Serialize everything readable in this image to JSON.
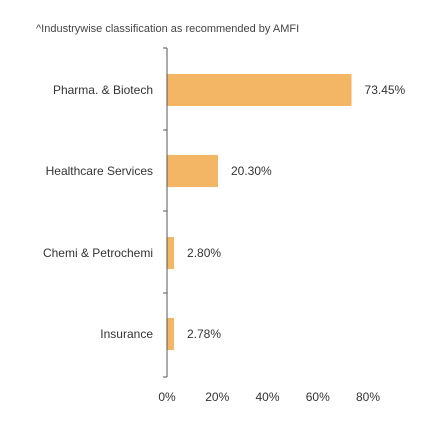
{
  "footnote": "^Industrywise classification as recommended by AMFI",
  "chart_data": {
    "type": "bar",
    "orientation": "horizontal",
    "categories": [
      "Pharma. & Biotech",
      "Healthcare Services",
      "Chemi & Petrochemi",
      "Insurance"
    ],
    "values": [
      73.45,
      20.3,
      2.8,
      2.78
    ],
    "value_labels": [
      "73.45%",
      "20.30%",
      "2.80%",
      "2.78%"
    ],
    "xlim": [
      0,
      80
    ],
    "x_ticks": [
      0,
      20,
      40,
      60,
      80
    ],
    "x_tick_labels": [
      "0%",
      "20%",
      "40%",
      "60%",
      "80%"
    ],
    "bar_color": "#F3B665",
    "axis_color": "#555555",
    "grid": false,
    "legend": "none"
  }
}
